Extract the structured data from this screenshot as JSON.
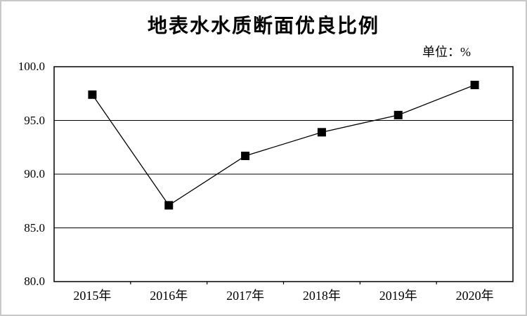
{
  "chart_data": {
    "type": "line",
    "title": "地表水水质断面优良比例",
    "unit_label": "单位：%",
    "categories": [
      "2015年",
      "2016年",
      "2017年",
      "2018年",
      "2019年",
      "2020年"
    ],
    "values": [
      97.4,
      87.1,
      91.7,
      93.9,
      95.5,
      98.3
    ],
    "xlabel": "",
    "ylabel": "",
    "ylim": [
      80.0,
      100.0
    ],
    "ytick_step": 5.0,
    "ytick_labels": [
      "100.0",
      "95.0",
      "90.0",
      "85.0",
      "80.0"
    ],
    "grid": "horizontal",
    "legend": "none",
    "marker": "filled-square",
    "line_color": "#000000",
    "marker_color": "#000000",
    "grid_color": "#000000",
    "axis_color": "#000000",
    "text_color": "#000000",
    "background_color": "#ffffff",
    "frame_color": "#c8c8c8"
  }
}
